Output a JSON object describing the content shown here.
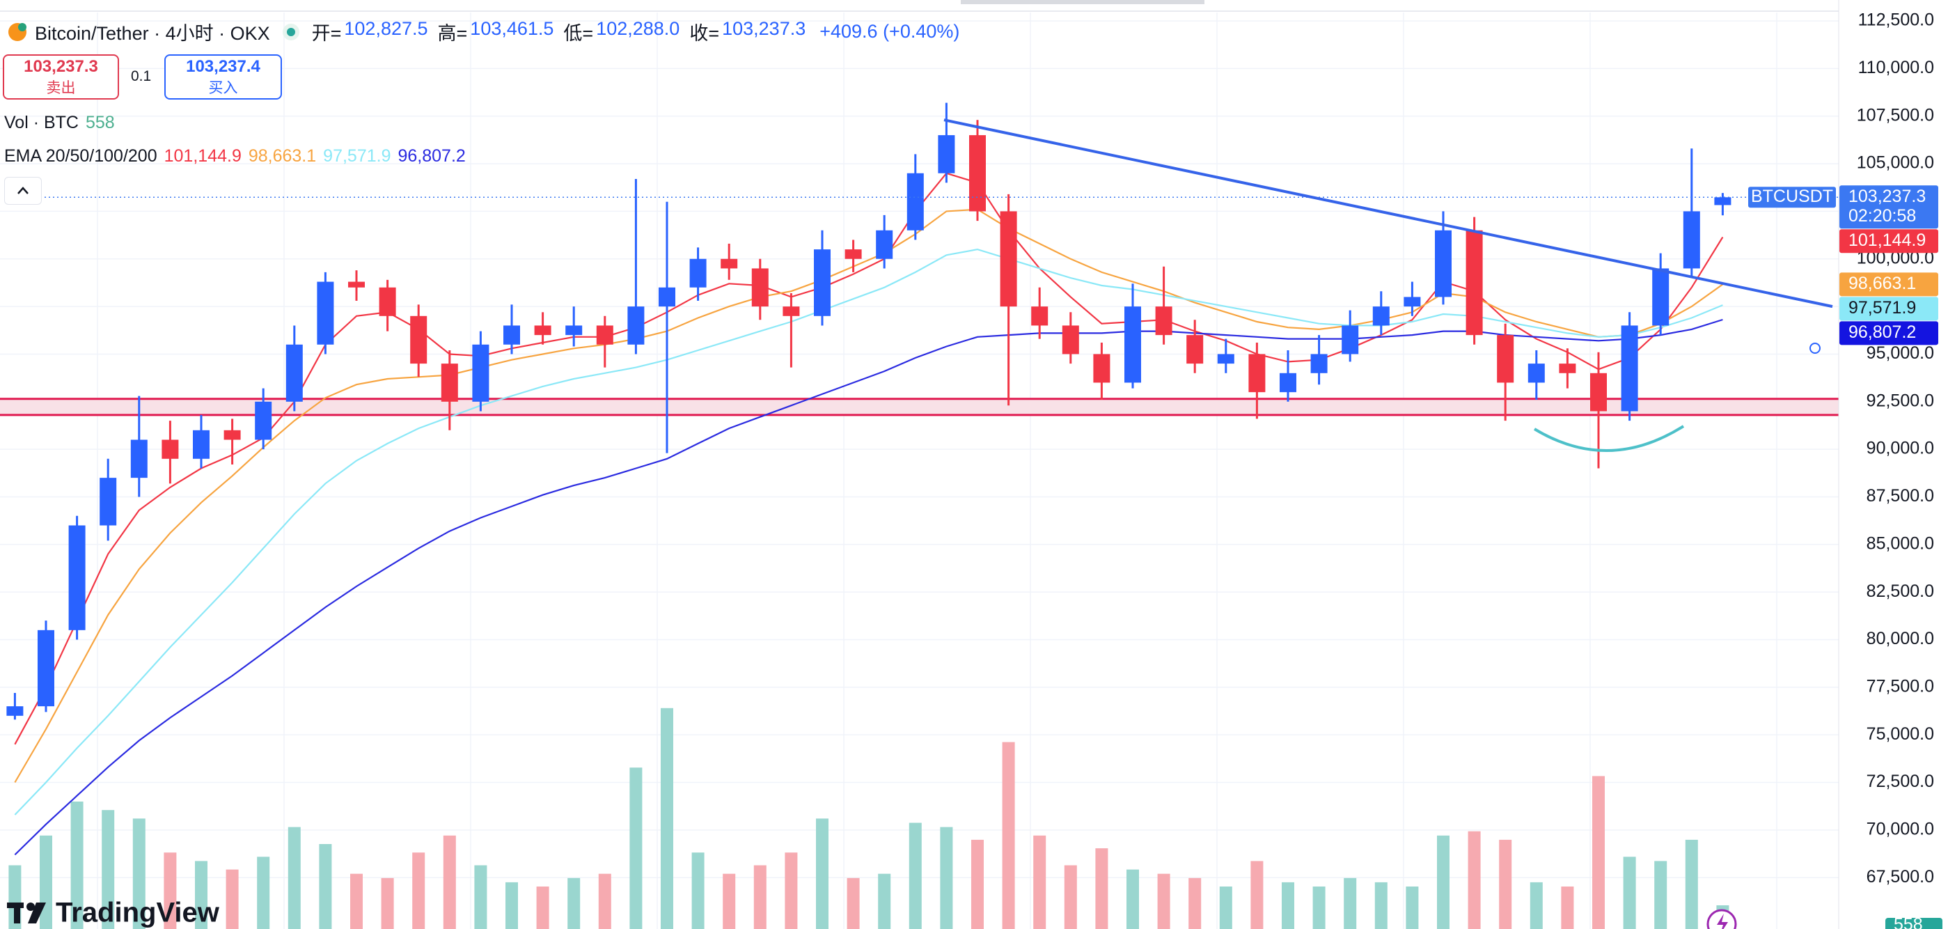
{
  "header": {
    "title": "Bitcoin/Tether · 4小时 · OKX",
    "ohlc": [
      {
        "label": "开=",
        "value": "102,827.5"
      },
      {
        "label": "高=",
        "value": "103,461.5"
      },
      {
        "label": "低=",
        "value": "102,288.0"
      },
      {
        "label": "收=",
        "value": "103,237.3"
      }
    ],
    "change": "+409.6 (+0.40%)",
    "sell": {
      "price": "103,237.3",
      "label": "卖出"
    },
    "quantity": "0.1",
    "buy": {
      "price": "103,237.4",
      "label": "买入"
    },
    "volume_label": "Vol · BTC",
    "volume_value": "558",
    "ema_label": "EMA 20/50/100/200",
    "logo": "TradingView",
    "volume_badge": "558"
  },
  "chart_data": {
    "type": "candlestick",
    "symbol": "BTCUSDT",
    "ylim": [
      64800,
      113600
    ],
    "yticks": [
      {
        "value": 67500,
        "label": "67,500.0"
      },
      {
        "value": 70000,
        "label": "70,000.0"
      },
      {
        "value": 72500,
        "label": "72,500.0"
      },
      {
        "value": 75000,
        "label": "75,000.0"
      },
      {
        "value": 77500,
        "label": "77,500.0"
      },
      {
        "value": 80000,
        "label": "80,000.0"
      },
      {
        "value": 82500,
        "label": "82,500.0"
      },
      {
        "value": 85000,
        "label": "85,000.0"
      },
      {
        "value": 87500,
        "label": "87,500.0"
      },
      {
        "value": 90000,
        "label": "90,000.0"
      },
      {
        "value": 92500,
        "label": "92,500.0"
      },
      {
        "value": 95000,
        "label": "95,000.0"
      },
      {
        "value": 97500,
        "label": "97,500.0"
      },
      {
        "value": 100000,
        "label": "100,000.0"
      },
      {
        "value": 102500,
        "label": "102,500.0"
      },
      {
        "value": 105000,
        "label": "105,000.0"
      },
      {
        "value": 107500,
        "label": "107,500.0"
      },
      {
        "value": 110000,
        "label": "110,000.0"
      },
      {
        "value": 112500,
        "label": "112,500.0"
      }
    ],
    "grid": true,
    "up_color": "#2962ff",
    "down_color": "#f23645",
    "volume_up_color": "#9ad6cf",
    "volume_down_color": "#f6aab0",
    "candles": [
      [
        76000,
        77200,
        75800,
        76500
      ],
      [
        76500,
        81000,
        76200,
        80500
      ],
      [
        80500,
        86500,
        80000,
        86000
      ],
      [
        86000,
        89500,
        85200,
        88500
      ],
      [
        88500,
        92800,
        87500,
        90500
      ],
      [
        90500,
        91500,
        88200,
        89500
      ],
      [
        89500,
        91800,
        89000,
        91000
      ],
      [
        91000,
        91600,
        89200,
        90500
      ],
      [
        90500,
        93200,
        90000,
        92500
      ],
      [
        92500,
        96500,
        92000,
        95500
      ],
      [
        95500,
        99300,
        95000,
        98800
      ],
      [
        98800,
        99400,
        97800,
        98500
      ],
      [
        98500,
        98900,
        96200,
        97000
      ],
      [
        97000,
        97600,
        93800,
        94500
      ],
      [
        94500,
        95200,
        91000,
        92500
      ],
      [
        92500,
        96200,
        92000,
        95500
      ],
      [
        95500,
        97600,
        95000,
        96500
      ],
      [
        96500,
        97200,
        95500,
        96000
      ],
      [
        96000,
        97500,
        95400,
        96500
      ],
      [
        96500,
        97000,
        94300,
        95500
      ],
      [
        95500,
        104200,
        95000,
        97500
      ],
      [
        97500,
        103000,
        89800,
        98500
      ],
      [
        98500,
        100600,
        97800,
        100000
      ],
      [
        100000,
        100800,
        98900,
        99500
      ],
      [
        99500,
        100000,
        96800,
        97500
      ],
      [
        97500,
        98200,
        94300,
        97000
      ],
      [
        97000,
        101500,
        96500,
        100500
      ],
      [
        100500,
        101000,
        99300,
        100000
      ],
      [
        100000,
        102300,
        99500,
        101500
      ],
      [
        101500,
        105500,
        101000,
        104500
      ],
      [
        104500,
        108200,
        104000,
        106500
      ],
      [
        106500,
        107300,
        102000,
        102500
      ],
      [
        102500,
        103400,
        92300,
        97500
      ],
      [
        97500,
        98500,
        95800,
        96500
      ],
      [
        96500,
        97200,
        94500,
        95000
      ],
      [
        95000,
        95600,
        92600,
        93500
      ],
      [
        93500,
        98700,
        93200,
        97500
      ],
      [
        97500,
        99600,
        95500,
        96000
      ],
      [
        96000,
        96800,
        94000,
        94500
      ],
      [
        94500,
        95800,
        94000,
        95000
      ],
      [
        95000,
        95600,
        91600,
        93000
      ],
      [
        93000,
        95200,
        92500,
        94000
      ],
      [
        94000,
        96000,
        93400,
        95000
      ],
      [
        95000,
        97300,
        94600,
        96500
      ],
      [
        96500,
        98300,
        96000,
        97500
      ],
      [
        97500,
        98800,
        97000,
        98000
      ],
      [
        98000,
        102500,
        97600,
        101500
      ],
      [
        101500,
        102200,
        95500,
        96000
      ],
      [
        96000,
        96600,
        91500,
        93500
      ],
      [
        93500,
        95200,
        92600,
        94500
      ],
      [
        94500,
        95300,
        93200,
        94000
      ],
      [
        94000,
        95100,
        89000,
        92000
      ],
      [
        92000,
        97200,
        91500,
        96500
      ],
      [
        96500,
        100300,
        96000,
        99500
      ],
      [
        99500,
        105800,
        99000,
        102500
      ],
      [
        102827.5,
        103461.5,
        102288.0,
        103237.3
      ]
    ],
    "volumes": [
      1500,
      2200,
      3000,
      2800,
      2600,
      1800,
      1600,
      1400,
      1700,
      2400,
      2000,
      1300,
      1200,
      1800,
      2200,
      1500,
      1100,
      1000,
      1200,
      1300,
      3800,
      5200,
      1800,
      1300,
      1500,
      1800,
      2600,
      1200,
      1300,
      2500,
      2400,
      2100,
      4400,
      2200,
      1500,
      1900,
      1400,
      1300,
      1200,
      1000,
      1600,
      1100,
      1000,
      1200,
      1100,
      1000,
      2200,
      2300,
      2100,
      1100,
      1000,
      3600,
      1700,
      1600,
      2100,
      558
    ],
    "series": [
      {
        "color": "#f23645",
        "values": [
          74500,
          77500,
          81000,
          84500,
          86800,
          88000,
          89000,
          89700,
          90600,
          92500,
          95500,
          97000,
          97200,
          96300,
          95000,
          94900,
          95300,
          95600,
          95900,
          95900,
          96400,
          97200,
          98100,
          98700,
          98600,
          98000,
          98500,
          99200,
          100000,
          102500,
          104500,
          104000,
          101500,
          99500,
          98000,
          96600,
          96700,
          96800,
          96200,
          95700,
          95000,
          94600,
          94700,
          95300,
          96000,
          96800,
          98800,
          98300,
          96800,
          95800,
          95100,
          94200,
          94800,
          96300,
          98500,
          101144.9
        ]
      },
      {
        "color": "#f7a440",
        "values": [
          72500,
          75300,
          78300,
          81300,
          83700,
          85600,
          87200,
          88600,
          90100,
          91500,
          92700,
          93400,
          93700,
          93800,
          93900,
          94300,
          94700,
          95000,
          95300,
          95500,
          95800,
          96200,
          96900,
          97500,
          98000,
          98300,
          98900,
          99600,
          100300,
          101300,
          102500,
          102600,
          101600,
          100800,
          100000,
          99300,
          98800,
          98300,
          97700,
          97200,
          96700,
          96400,
          96300,
          96500,
          96800,
          97200,
          98200,
          98000,
          97200,
          96700,
          96300,
          95900,
          96000,
          96600,
          97500,
          98663.1
        ]
      },
      {
        "color": "#8be8f7",
        "values": [
          70800,
          72500,
          74300,
          76000,
          77800,
          79600,
          81300,
          83000,
          84800,
          86600,
          88200,
          89400,
          90300,
          91100,
          91700,
          92300,
          92800,
          93300,
          93700,
          94000,
          94300,
          94700,
          95200,
          95700,
          96200,
          96700,
          97300,
          97900,
          98500,
          99300,
          100200,
          100500,
          100000,
          99500,
          99000,
          98600,
          98400,
          98100,
          97800,
          97500,
          97200,
          96900,
          96600,
          96500,
          96500,
          96700,
          97100,
          97000,
          96700,
          96400,
          96100,
          95900,
          96000,
          96400,
          96900,
          97571.9
        ]
      },
      {
        "color": "#2a2ae0",
        "values": [
          68700,
          70300,
          71800,
          73300,
          74700,
          75900,
          77000,
          78100,
          79300,
          80500,
          81700,
          82800,
          83800,
          84800,
          85700,
          86400,
          87000,
          87600,
          88100,
          88500,
          89000,
          89500,
          90300,
          91100,
          91700,
          92300,
          92900,
          93500,
          94100,
          94800,
          95400,
          95900,
          96000,
          96100,
          96100,
          96100,
          96200,
          96200,
          96100,
          96000,
          95900,
          95800,
          95800,
          95800,
          95900,
          96000,
          96200,
          96200,
          96000,
          95900,
          95800,
          95700,
          95800,
          96000,
          96300,
          96807.2
        ]
      }
    ],
    "price_labels": [
      {
        "value": 103237.3,
        "label": "103,237.3",
        "countdown": "02:20:58",
        "color": "#3b78f2",
        "text_color": "#ffffff"
      },
      {
        "value": 101144.9,
        "label": "101,144.9",
        "color": "#f23645",
        "text_color": "#ffffff"
      },
      {
        "value": 98663.1,
        "label": "98,663.1",
        "color": "#f7a440",
        "text_color": "#ffffff"
      },
      {
        "value": 97571.9,
        "label": "97,571.9",
        "color": "#8be8f7",
        "text_color": "#131722"
      },
      {
        "value": 96807.2,
        "label": "96,807.2",
        "color": "#1414e0",
        "text_color": "#ffffff"
      }
    ],
    "support_zone": [
      91800,
      92650
    ],
    "trendline": [
      107300,
      97500
    ]
  }
}
